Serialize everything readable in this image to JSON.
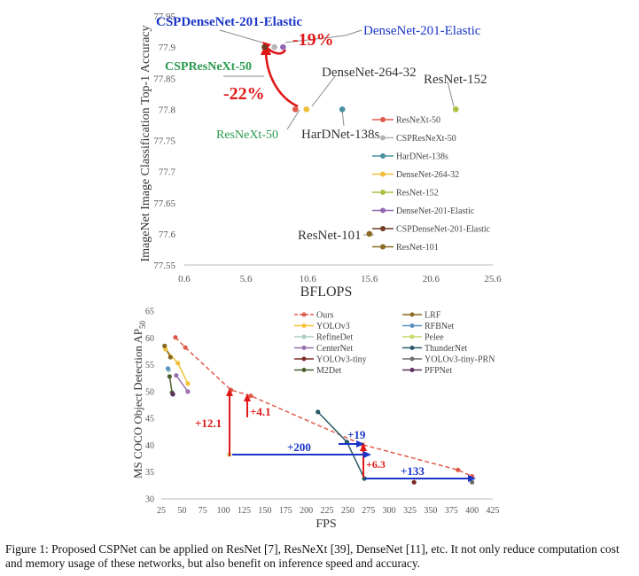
{
  "caption": "Figure 1: Proposed CSPNet can be applied on ResNet [7], ResNeXt [39], DenseNet [11], etc. It not only reduce computation cost and memory usage of these networks, but also benefit on inference speed and accuracy.",
  "chart_data": [
    {
      "type": "scatter",
      "xlabel": "BFLOPS",
      "ylabel": "ImageNet Image Classification Top-1 Accuracy",
      "xlim": [
        0.6,
        25.6
      ],
      "ylim": [
        77.55,
        77.95
      ],
      "xticks": [
        0.6,
        5.6,
        10.6,
        15.6,
        20.6,
        25.6
      ],
      "yticks": [
        77.55,
        77.6,
        77.65,
        77.7,
        77.75,
        77.8,
        77.85,
        77.9,
        77.95
      ],
      "grid": false,
      "legend_position": "right",
      "series": [
        {
          "name": "ResNeXt-50",
          "color": "#e05a4a",
          "x": [
            9.6
          ],
          "y": [
            77.8
          ]
        },
        {
          "name": "CSPResNeXt-50",
          "color": "#b5b5b5",
          "x": [
            7.9
          ],
          "y": [
            77.9
          ]
        },
        {
          "name": "HarDNet-138s",
          "color": "#4a8fa0",
          "x": [
            13.4
          ],
          "y": [
            77.8
          ]
        },
        {
          "name": "DenseNet-264-32",
          "color": "#f2bf3a",
          "x": [
            10.5
          ],
          "y": [
            77.8
          ]
        },
        {
          "name": "ResNet-152",
          "color": "#a8c244",
          "x": [
            22.6
          ],
          "y": [
            77.8
          ]
        },
        {
          "name": "DenseNet-201-Elastic",
          "color": "#9068b0",
          "x": [
            8.6
          ],
          "y": [
            77.9
          ]
        },
        {
          "name": "CSPDenseNet-201-Elastic",
          "color": "#6e3b23",
          "x": [
            7.1
          ],
          "y": [
            77.9
          ]
        },
        {
          "name": "ResNet-101",
          "color": "#8a6a22",
          "x": [
            15.6
          ],
          "y": [
            77.6
          ]
        }
      ],
      "annotations": [
        {
          "text": "CSPDenseNet-201-Elastic",
          "color": "#1a35c8"
        },
        {
          "text": "DenseNet-201-Elastic",
          "color": "#1a35c8"
        },
        {
          "text": "CSPResNeXt-50",
          "color": "#2a9a50"
        },
        {
          "text": "ResNeXt-50",
          "color": "#2a9a50"
        },
        {
          "text": "DenseNet-264-32",
          "color": "#333333"
        },
        {
          "text": "ResNet-152",
          "color": "#333333"
        },
        {
          "text": "HarDNet-138s",
          "color": "#333333"
        },
        {
          "text": "ResNet-101",
          "color": "#333333"
        },
        {
          "text": "-19%",
          "color": "#e01818"
        },
        {
          "text": "-22%",
          "color": "#e01818"
        }
      ]
    },
    {
      "type": "line",
      "xlabel": "FPS",
      "ylabel": "MS COCO Object Detection AP",
      "ylabel_sub": "50",
      "xlim": [
        25,
        425
      ],
      "ylim": [
        30,
        65
      ],
      "xticks": [
        25,
        50,
        75,
        100,
        125,
        150,
        175,
        200,
        225,
        250,
        275,
        300,
        325,
        350,
        375,
        400,
        425
      ],
      "yticks": [
        30,
        35,
        40,
        45,
        50,
        55,
        60,
        65
      ],
      "grid": false,
      "legend_position": "top",
      "series": [
        {
          "name": "Ours",
          "color": "#e05a4a",
          "dashed": true,
          "x": [
            42,
            54,
            109,
            133,
            268,
            383,
            400
          ],
          "y": [
            60.1,
            58.2,
            50.3,
            49.2,
            40.1,
            35.4,
            34.2
          ]
        },
        {
          "name": "YOLOv3",
          "color": "#f2c23a",
          "x": [
            30,
            45,
            57
          ],
          "y": [
            57.9,
            55.3,
            51.5
          ]
        },
        {
          "name": "RefineDet",
          "color": "#a8d0c0",
          "x": [
            34
          ],
          "y": [
            54.0
          ]
        },
        {
          "name": "CenterNet",
          "color": "#9870b0",
          "x": [
            43,
            57
          ],
          "y": [
            53.0,
            50.0
          ]
        },
        {
          "name": "YOLOv3-tiny",
          "color": "#7a2a20",
          "x": [
            330
          ],
          "y": [
            33.1
          ]
        },
        {
          "name": "M2Det",
          "color": "#4e6030",
          "x": [
            35,
            38
          ],
          "y": [
            52.8,
            49.8
          ]
        },
        {
          "name": "LRF",
          "color": "#8a6a22",
          "x": [
            29,
            36
          ],
          "y": [
            58.5,
            56.4
          ]
        },
        {
          "name": "RFBNet",
          "color": "#5a90c0",
          "x": [
            33
          ],
          "y": [
            54.3
          ]
        },
        {
          "name": "Pelee",
          "color": "#c8d66a",
          "x": [
            107
          ],
          "y": [
            38.3
          ]
        },
        {
          "name": "ThunderNet",
          "color": "#2a5a68",
          "x": [
            214,
            249,
            270
          ],
          "y": [
            46.2,
            40.6,
            33.8
          ]
        },
        {
          "name": "YOLOv3-tiny-PRN",
          "color": "#6e6e6e",
          "x": [
            400
          ],
          "y": [
            33.1
          ]
        },
        {
          "name": "PFPNet",
          "color": "#5a3060",
          "x": [
            39
          ],
          "y": [
            49.5
          ]
        }
      ],
      "annotations": [
        {
          "text": "+12.1",
          "color": "#e01818"
        },
        {
          "text": "+4.1",
          "color": "#e01818"
        },
        {
          "text": "+6.3",
          "color": "#e01818"
        },
        {
          "text": "+200",
          "color": "#1a35c8"
        },
        {
          "text": "+19",
          "color": "#1a35c8"
        },
        {
          "text": "+133",
          "color": "#1a35c8"
        }
      ]
    }
  ]
}
